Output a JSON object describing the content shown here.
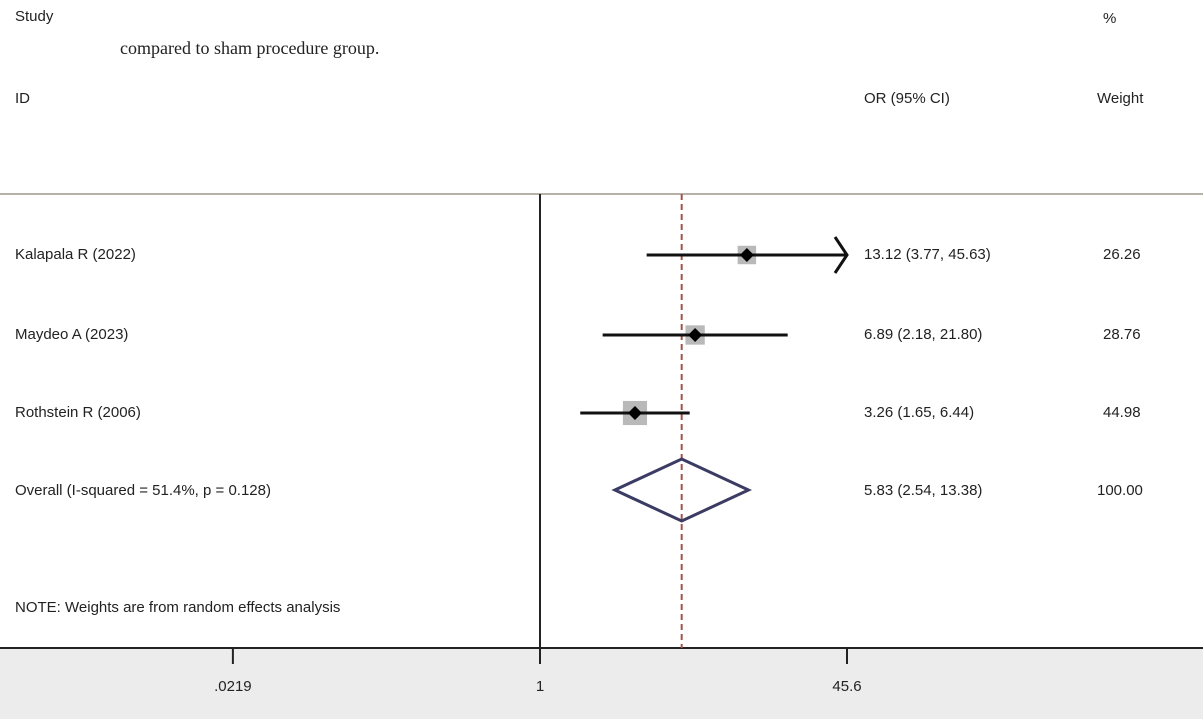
{
  "header": {
    "study_label": "Study",
    "caption": "compared to sham procedure group.",
    "id_label": "ID",
    "or_label": "OR (95% CI)",
    "pct_label": "%",
    "weight_label": "Weight"
  },
  "note": "NOTE: Weights are from random effects analysis",
  "colors": {
    "marker_box": "#b9b9b9",
    "ci_line": "#111111",
    "overall_diamond": "#3b3b63",
    "ref_line": "#a2524a",
    "axis_panel": "#ececec"
  },
  "chart_data": {
    "type": "forest",
    "scale": "log",
    "null_value": 1,
    "xlim": [
      0.0219,
      45.6
    ],
    "ticks": [
      {
        "value": 0.0219,
        "label": ".0219"
      },
      {
        "value": 1,
        "label": "1"
      },
      {
        "value": 45.6,
        "label": "45.6"
      }
    ],
    "pooled_estimate": 5.83,
    "studies": [
      {
        "id": "Kalapala R (2022)",
        "or": 13.12,
        "lo": 3.77,
        "hi": 45.63,
        "ci_text": "13.12 (3.77, 45.63)",
        "weight": "26.26",
        "arrow_right": true
      },
      {
        "id": "Maydeo A (2023)",
        "or": 6.89,
        "lo": 2.18,
        "hi": 21.8,
        "ci_text": "6.89 (2.18, 21.80)",
        "weight": "28.76",
        "arrow_right": false
      },
      {
        "id": "Rothstein R (2006)",
        "or": 3.26,
        "lo": 1.65,
        "hi": 6.44,
        "ci_text": "3.26 (1.65, 6.44)",
        "weight": "44.98",
        "arrow_right": false
      }
    ],
    "overall": {
      "label": "Overall  (I-squared = 51.4%, p = 0.128)",
      "or": 5.83,
      "lo": 2.54,
      "hi": 13.38,
      "ci_text": "5.83 (2.54, 13.38)",
      "weight": "100.00"
    }
  }
}
